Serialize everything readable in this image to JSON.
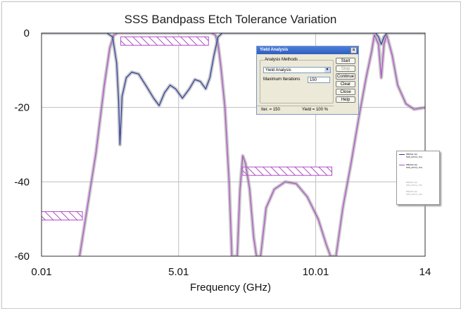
{
  "chart_data": {
    "type": "line",
    "title": "SSS Bandpass Etch Tolerance Variation",
    "xlabel": "Frequency (GHz)",
    "ylabel": "",
    "xlim": [
      0.01,
      14
    ],
    "ylim": [
      -60,
      0
    ],
    "x_ticks": [
      "0.01",
      "5.01",
      "10.01",
      "14"
    ],
    "y_ticks": [
      "0",
      "-20",
      "-40",
      "-60"
    ],
    "grid": true,
    "legend_position": "right",
    "series": [
      {
        "name": "DB(|S(2,1)|)",
        "sub": "SSS_ETCH_TOL",
        "color": "#b04cc8",
        "points": [
          [
            1.4,
            -60
          ],
          [
            2.0,
            -32
          ],
          [
            2.3,
            -14
          ],
          [
            2.5,
            -4
          ],
          [
            2.65,
            -0.5
          ],
          [
            2.8,
            0
          ],
          [
            6.2,
            0
          ],
          [
            6.35,
            -0.5
          ],
          [
            6.45,
            -3
          ],
          [
            6.55,
            -9
          ],
          [
            6.7,
            -20
          ],
          [
            6.85,
            -40
          ],
          [
            6.95,
            -60
          ],
          [
            7.15,
            -60
          ],
          [
            7.25,
            -42
          ],
          [
            7.35,
            -33
          ],
          [
            7.45,
            -35
          ],
          [
            7.6,
            -42
          ],
          [
            7.75,
            -55
          ],
          [
            7.85,
            -60
          ],
          [
            8.0,
            -60
          ],
          [
            8.2,
            -47
          ],
          [
            8.5,
            -42
          ],
          [
            8.9,
            -40
          ],
          [
            9.3,
            -40.5
          ],
          [
            9.7,
            -44
          ],
          [
            10.1,
            -50
          ],
          [
            10.4,
            -57
          ],
          [
            10.55,
            -60
          ],
          [
            10.75,
            -60
          ],
          [
            11.0,
            -47
          ],
          [
            11.3,
            -35
          ],
          [
            11.6,
            -22
          ],
          [
            11.85,
            -12
          ],
          [
            12.05,
            -5
          ],
          [
            12.15,
            -0.5
          ],
          [
            12.3,
            -3
          ],
          [
            12.4,
            -12
          ],
          [
            12.5,
            -3
          ],
          [
            12.6,
            -0.5
          ],
          [
            12.8,
            -6
          ],
          [
            13.0,
            -14
          ],
          [
            13.3,
            -19
          ],
          [
            13.6,
            -20.5
          ],
          [
            14,
            -20
          ]
        ]
      },
      {
        "name": "DB(|S(1,1)|)",
        "sub": "SSS_ETCH_TOL",
        "color": "#2a3aa0",
        "points": [
          [
            0.01,
            0
          ],
          [
            2.4,
            0
          ],
          [
            2.6,
            -1
          ],
          [
            2.75,
            -8
          ],
          [
            2.82,
            -18
          ],
          [
            2.87,
            -30
          ],
          [
            2.95,
            -17
          ],
          [
            3.1,
            -12
          ],
          [
            3.3,
            -10.5
          ],
          [
            3.55,
            -11
          ],
          [
            3.85,
            -14.5
          ],
          [
            4.1,
            -17.5
          ],
          [
            4.3,
            -19.5
          ],
          [
            4.5,
            -16
          ],
          [
            4.7,
            -14
          ],
          [
            4.9,
            -15
          ],
          [
            5.15,
            -17.5
          ],
          [
            5.4,
            -15
          ],
          [
            5.6,
            -12.5
          ],
          [
            5.8,
            -13
          ],
          [
            6.0,
            -15
          ],
          [
            6.15,
            -12
          ],
          [
            6.3,
            -6
          ],
          [
            6.45,
            -1
          ],
          [
            6.6,
            0
          ],
          [
            12.2,
            0
          ],
          [
            12.3,
            -1
          ],
          [
            12.4,
            -3
          ],
          [
            12.5,
            -1
          ],
          [
            12.6,
            0
          ],
          [
            14,
            0
          ]
        ]
      }
    ],
    "legend_extra": [
      {
        "name": "DB(|S(1,1)|)",
        "sub": "SSS_ETCH_TOL"
      },
      {
        "name": "DB(|S(2,1)|)",
        "sub": "SSS_ETCH_TOL"
      }
    ],
    "spec_masks": [
      {
        "x": [
          0.01,
          1.5
        ],
        "y": -48
      },
      {
        "x": [
          2.9,
          6.1
        ],
        "y": -1
      },
      {
        "x": [
          7.35,
          10.6
        ],
        "y": -36
      }
    ]
  },
  "dialog": {
    "title": "Yield Analysis",
    "close": "×",
    "group_label": "Analysis Methods",
    "method": "Yield Analysis",
    "iterations_label": "Maximum Iterations",
    "iterations_value": "150",
    "buttons": {
      "start": "Start",
      "stop": "Stop",
      "continue": "Continue",
      "clear": "Clear",
      "close": "Close",
      "help": "Help"
    },
    "status_iter": "Iter. = 150",
    "status_yield": "Yield = 100 %"
  },
  "colors": {
    "s21": "#b04cc8",
    "s11": "#2a3aa0",
    "hatch": "#b04cc8"
  }
}
